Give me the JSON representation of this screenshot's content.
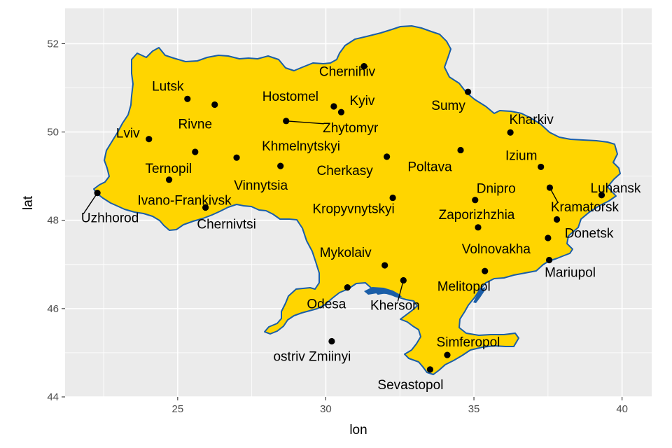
{
  "chart_data": {
    "type": "scatter",
    "title": "",
    "xlabel": "lon",
    "ylabel": "lat",
    "xlim": [
      21.2,
      41.0
    ],
    "ylim": [
      44.0,
      52.8
    ],
    "x_ticks": [
      25,
      30,
      35,
      40
    ],
    "y_ticks": [
      44,
      46,
      48,
      50,
      52
    ],
    "grid": true,
    "colors": {
      "panel": "#ebebeb",
      "grid": "#ffffff",
      "country_fill": "#ffd500",
      "country_border": "#1a5ea8",
      "water": "#1a5ea8",
      "point": "#000000"
    },
    "points": [
      {
        "name": "Chernihiv",
        "lon": 31.29,
        "lat": 51.49
      },
      {
        "name": "Lutsk",
        "lon": 25.33,
        "lat": 50.75
      },
      {
        "name": "Rivne",
        "lon": 26.25,
        "lat": 50.62
      },
      {
        "name": "Hostomel",
        "lon": 30.27,
        "lat": 50.58
      },
      {
        "name": "Kyiv",
        "lon": 30.52,
        "lat": 50.45
      },
      {
        "name": "Sumy",
        "lon": 34.8,
        "lat": 50.91
      },
      {
        "name": "Zhytomyr",
        "lon": 28.66,
        "lat": 50.25
      },
      {
        "name": "Kharkiv",
        "lon": 36.23,
        "lat": 49.99
      },
      {
        "name": "Lviv",
        "lon": 24.03,
        "lat": 49.84
      },
      {
        "name": "Khmelnytskyi",
        "lon": 26.99,
        "lat": 49.42
      },
      {
        "name": "Ternopil",
        "lon": 25.59,
        "lat": 49.55
      },
      {
        "name": "Poltava",
        "lon": 34.55,
        "lat": 49.59
      },
      {
        "name": "Cherkasy",
        "lon": 32.06,
        "lat": 49.44
      },
      {
        "name": "Vinnytsia",
        "lon": 28.47,
        "lat": 49.23
      },
      {
        "name": "Izium",
        "lon": 37.26,
        "lat": 49.21
      },
      {
        "name": "Ivano-Frankivsk",
        "lon": 24.71,
        "lat": 48.92
      },
      {
        "name": "Uzhhorod",
        "lon": 22.29,
        "lat": 48.62
      },
      {
        "name": "Kramatorsk",
        "lon": 37.56,
        "lat": 48.74
      },
      {
        "name": "Luhansk",
        "lon": 39.31,
        "lat": 48.57
      },
      {
        "name": "Dnipro",
        "lon": 35.04,
        "lat": 48.46
      },
      {
        "name": "Kropyvnytskyi",
        "lon": 32.26,
        "lat": 48.51
      },
      {
        "name": "Chernivtsi",
        "lon": 25.94,
        "lat": 48.29
      },
      {
        "name": "Donetsk",
        "lon": 37.8,
        "lat": 48.02
      },
      {
        "name": "Zaporizhzhia",
        "lon": 35.14,
        "lat": 47.84
      },
      {
        "name": "Volnovakha",
        "lon": 37.5,
        "lat": 47.6
      },
      {
        "name": "Mariupol",
        "lon": 37.54,
        "lat": 47.1
      },
      {
        "name": "Mykolaiv",
        "lon": 31.99,
        "lat": 46.98
      },
      {
        "name": "Melitopol",
        "lon": 35.37,
        "lat": 46.85
      },
      {
        "name": "Kherson",
        "lon": 32.62,
        "lat": 46.64
      },
      {
        "name": "Odesa",
        "lon": 30.73,
        "lat": 46.48
      },
      {
        "name": "ostriv Zmiinyi",
        "lon": 30.2,
        "lat": 45.26
      },
      {
        "name": "Simferopol",
        "lon": 34.1,
        "lat": 44.95
      },
      {
        "name": "Sevastopol",
        "lon": 33.52,
        "lat": 44.62
      }
    ]
  }
}
